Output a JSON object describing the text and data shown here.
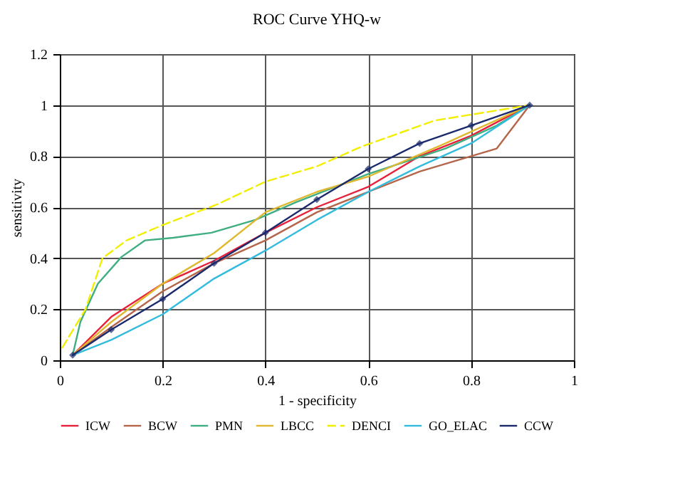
{
  "chart_data": {
    "type": "line",
    "title": "ROC Curve YHQ-w",
    "xlabel": "1 - specificity",
    "ylabel": "sensitivity",
    "xlim": [
      0,
      1
    ],
    "ylim": [
      0,
      1.2
    ],
    "xticks": [
      0,
      0.2,
      0.4,
      0.6,
      0.8,
      1
    ],
    "yticks": [
      0,
      0.2,
      0.4,
      0.6,
      0.8,
      1,
      1.2
    ],
    "grid": true,
    "legend": "bottom",
    "series": [
      {
        "name": "ICW",
        "color": "#e8203a",
        "x": [
          0.025,
          0.1,
          0.2,
          0.3,
          0.4,
          0.5,
          0.6,
          0.7,
          0.8,
          0.914
        ],
        "values": [
          0.02,
          0.17,
          0.3,
          0.39,
          0.5,
          0.6,
          0.68,
          0.8,
          0.88,
          1
        ]
      },
      {
        "name": "BCW",
        "color": "#b5654a",
        "x": [
          0.025,
          0.1,
          0.2,
          0.3,
          0.4,
          0.5,
          0.6,
          0.7,
          0.8,
          0.85,
          0.914
        ],
        "values": [
          0.02,
          0.13,
          0.27,
          0.38,
          0.47,
          0.58,
          0.66,
          0.74,
          0.8,
          0.83,
          1
        ]
      },
      {
        "name": "PMN",
        "color": "#3fae80",
        "x": [
          0.025,
          0.04,
          0.074,
          0.12,
          0.166,
          0.22,
          0.295,
          0.38,
          0.46,
          0.6,
          0.75,
          0.85,
          0.914
        ],
        "values": [
          0.02,
          0.15,
          0.3,
          0.405,
          0.47,
          0.48,
          0.5,
          0.55,
          0.62,
          0.73,
          0.83,
          0.92,
          1
        ]
      },
      {
        "name": "LBCC",
        "color": "#e0b830",
        "x": [
          0.025,
          0.1,
          0.2,
          0.3,
          0.4,
          0.5,
          0.6,
          0.75,
          0.914
        ],
        "values": [
          0.02,
          0.15,
          0.3,
          0.42,
          0.58,
          0.66,
          0.72,
          0.85,
          1
        ]
      },
      {
        "name": "DENCI",
        "color": "#f2ee00",
        "line_style": "dashed",
        "x": [
          0.005,
          0.05,
          0.083,
          0.13,
          0.2,
          0.305,
          0.4,
          0.5,
          0.59,
          0.73,
          0.914
        ],
        "values": [
          0.05,
          0.2,
          0.4,
          0.47,
          0.53,
          0.61,
          0.7,
          0.76,
          0.84,
          0.94,
          1
        ]
      },
      {
        "name": "GO_ELAC",
        "color": "#33bbdd",
        "x": [
          0.025,
          0.1,
          0.2,
          0.3,
          0.4,
          0.5,
          0.6,
          0.7,
          0.8,
          0.914
        ],
        "values": [
          0.02,
          0.08,
          0.18,
          0.32,
          0.43,
          0.55,
          0.66,
          0.76,
          0.85,
          1
        ]
      },
      {
        "name": "CCW",
        "color": "#1a2a6c",
        "marker": "diamond",
        "x": [
          0.025,
          0.1,
          0.2,
          0.3,
          0.4,
          0.5,
          0.6,
          0.7,
          0.8,
          0.914
        ],
        "values": [
          0.02,
          0.12,
          0.24,
          0.38,
          0.5,
          0.63,
          0.75,
          0.85,
          0.92,
          1
        ]
      }
    ]
  }
}
